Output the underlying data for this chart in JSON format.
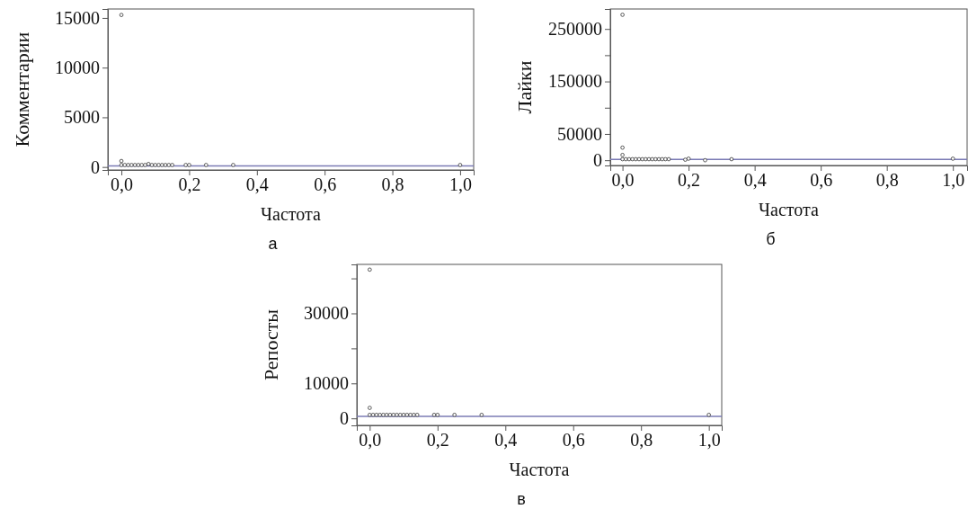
{
  "chart_data": [
    {
      "type": "scatter",
      "xlabel": "Частота",
      "ylabel": "Комментарии",
      "annotations": [
        "а"
      ],
      "marker": "circle",
      "xlim": [
        -0.04,
        1.04
      ],
      "ylim": [
        -300,
        15900
      ],
      "xticks": [
        {
          "value": 0,
          "label": "0,0"
        },
        {
          "value": 0.2,
          "label": "0,2"
        },
        {
          "value": 0.4,
          "label": "0,4"
        },
        {
          "value": 0.6,
          "label": "0,6"
        },
        {
          "value": 0.8,
          "label": "0,8"
        },
        {
          "value": 1,
          "label": "1,0"
        }
      ],
      "yticks": [
        0,
        5000,
        10000,
        15000
      ],
      "series": [
        {
          "color": "#333333",
          "x": [
            0,
            0,
            0,
            0.01,
            0.02,
            0.03,
            0.04,
            0.05,
            0.06,
            0.07,
            0.08,
            0.09,
            0.1,
            0.11,
            0.12,
            0.13,
            0.14,
            0.15,
            0.19,
            0.2,
            0.25,
            0.33,
            1.0
          ],
          "values": [
            15300,
            600,
            200,
            200,
            200,
            200,
            200,
            200,
            200,
            200,
            300,
            200,
            200,
            200,
            200,
            200,
            200,
            200,
            200,
            200,
            200,
            200,
            200
          ]
        }
      ],
      "ref_lines": [
        {
          "axis": "y",
          "value": 100,
          "color": "#7b7bb5"
        }
      ]
    },
    {
      "type": "scatter",
      "xlabel": "Частота",
      "ylabel": "Лайки",
      "annotations": [
        "б"
      ],
      "marker": "circle",
      "xlim": [
        -0.037,
        1.043
      ],
      "ylim": [
        -10000,
        288000
      ],
      "xticks": [
        {
          "value": 0,
          "label": "0,0"
        },
        {
          "value": 0.2,
          "label": "0,2"
        },
        {
          "value": 0.4,
          "label": "0,4"
        },
        {
          "value": 0.6,
          "label": "0,6"
        },
        {
          "value": 0.8,
          "label": "0,8"
        },
        {
          "value": 1,
          "label": "1,0"
        }
      ],
      "yticks": [
        0,
        50000,
        {
          "value": 100000,
          "label": null
        },
        150000,
        {
          "value": 200000,
          "label": null
        },
        250000
      ],
      "series": [
        {
          "color": "#333333",
          "x": [
            0,
            0,
            0,
            0,
            0.01,
            0.02,
            0.03,
            0.04,
            0.05,
            0.06,
            0.07,
            0.08,
            0.09,
            0.1,
            0.11,
            0.12,
            0.13,
            0.14,
            0.19,
            0.2,
            0.25,
            0.33,
            1.0
          ],
          "values": [
            277000,
            24000,
            10000,
            2000,
            2000,
            2000,
            2000,
            2000,
            2000,
            2000,
            2000,
            2000,
            2000,
            2000,
            2000,
            2000,
            2000,
            2000,
            1000,
            3000,
            0,
            2000,
            3000
          ]
        }
      ],
      "ref_lines": [
        {
          "axis": "y",
          "value": 1500,
          "color": "#7b7bb5"
        }
      ]
    },
    {
      "type": "scatter",
      "xlabel": "Частота",
      "ylabel": "Репосты",
      "annotations": [
        "в"
      ],
      "marker": "circle",
      "xlim": [
        -0.038,
        1.038
      ],
      "ylim": [
        -2000,
        44000
      ],
      "xticks": [
        {
          "value": 0,
          "label": "0,0"
        },
        {
          "value": 0.2,
          "label": "0,2"
        },
        {
          "value": 0.4,
          "label": "0,4"
        },
        {
          "value": 0.6,
          "label": "0,6"
        },
        {
          "value": 0.8,
          "label": "0,8"
        },
        {
          "value": 1,
          "label": "1,0"
        }
      ],
      "yticks": [
        0,
        10000,
        {
          "value": 20000,
          "label": null
        },
        30000,
        {
          "value": 40000,
          "label": null
        }
      ],
      "series": [
        {
          "color": "#333333",
          "x": [
            0,
            0,
            0,
            0.01,
            0.02,
            0.03,
            0.04,
            0.05,
            0.06,
            0.07,
            0.08,
            0.09,
            0.1,
            0.11,
            0.12,
            0.13,
            0.14,
            0.19,
            0.2,
            0.25,
            0.33,
            1.0
          ],
          "values": [
            42500,
            3000,
            1000,
            1000,
            1000,
            1000,
            1000,
            1000,
            1000,
            1000,
            1000,
            1000,
            1000,
            1000,
            1000,
            1000,
            1000,
            1000,
            1000,
            1000,
            1000,
            1000
          ]
        }
      ],
      "ref_lines": [
        {
          "axis": "y",
          "value": 600,
          "color": "#7b7bb5"
        }
      ]
    }
  ]
}
